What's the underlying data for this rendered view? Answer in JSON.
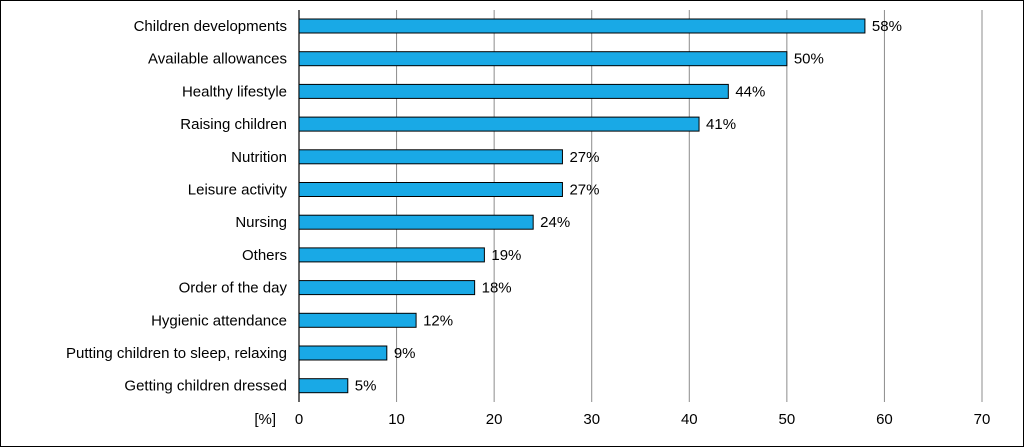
{
  "colors": {
    "bar": "#19A9E6",
    "grid": "#8c8c8c",
    "border": "#000000"
  },
  "chart_data": {
    "type": "bar",
    "orientation": "horizontal",
    "categories": [
      "Children developments",
      "Available allowances",
      "Healthy lifestyle",
      "Raising children",
      "Nutrition",
      "Leisure activity",
      "Nursing",
      "Others",
      "Order of the day",
      "Hygienic attendance",
      "Putting children to sleep, relaxing",
      "Getting children dressed"
    ],
    "values": [
      58,
      50,
      44,
      41,
      27,
      27,
      24,
      19,
      18,
      12,
      9,
      5
    ],
    "value_labels": [
      "58%",
      "50%",
      "44%",
      "41%",
      "27%",
      "27%",
      "24%",
      "19%",
      "18%",
      "12%",
      "9%",
      "5%"
    ],
    "x_ticks": [
      0,
      10,
      20,
      30,
      40,
      50,
      60,
      70
    ],
    "x_tick_labels": [
      "0",
      "10",
      "20",
      "30",
      "40",
      "50",
      "60",
      "70"
    ],
    "xlim": [
      0,
      70
    ],
    "axis_unit_label": "[%]",
    "grid": true
  }
}
